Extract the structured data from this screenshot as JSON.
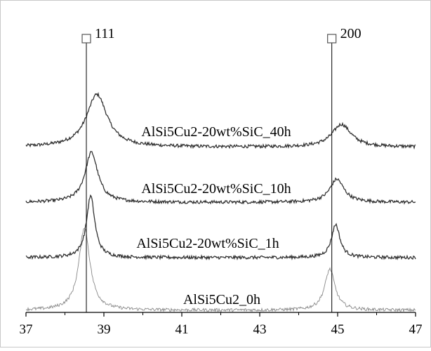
{
  "chart_data": {
    "type": "line",
    "title": "",
    "xlabel": "",
    "ylabel": "",
    "xlim": [
      37,
      47
    ],
    "x_ticks": [
      37,
      39,
      41,
      43,
      45,
      47
    ],
    "grid": false,
    "legend": "none",
    "series": [
      {
        "label": "AlSi5Cu2-20wt%SiC_40h",
        "color": "#333333",
        "baseline": 3.1,
        "peaks": [
          {
            "center": 38.82,
            "height": 1.0,
            "width": 0.32
          },
          {
            "center": 45.1,
            "height": 0.43,
            "width": 0.3
          }
        ]
      },
      {
        "label": "AlSi5Cu2-20wt%SiC_10h",
        "color": "#333333",
        "baseline": 2.05,
        "peaks": [
          {
            "center": 38.68,
            "height": 0.95,
            "width": 0.2
          },
          {
            "center": 44.98,
            "height": 0.44,
            "width": 0.22
          }
        ]
      },
      {
        "label": "AlSi5Cu2-20wt%SiC_1h",
        "color": "#333333",
        "baseline": 1.0,
        "peaks": [
          {
            "center": 38.66,
            "height": 1.17,
            "width": 0.13
          },
          {
            "center": 44.95,
            "height": 0.63,
            "width": 0.13
          }
        ]
      },
      {
        "label": "AlSi5Cu2_0h",
        "color": "#888888",
        "baseline": 0.0,
        "peaks": [
          {
            "center": 38.5,
            "height": 1.58,
            "width": 0.17
          },
          {
            "center": 44.8,
            "height": 0.78,
            "width": 0.16
          }
        ]
      }
    ],
    "reference_lines": [
      {
        "label": "111",
        "x": 38.55,
        "marker": "square"
      },
      {
        "label": "200",
        "x": 44.85,
        "marker": "square"
      }
    ]
  }
}
